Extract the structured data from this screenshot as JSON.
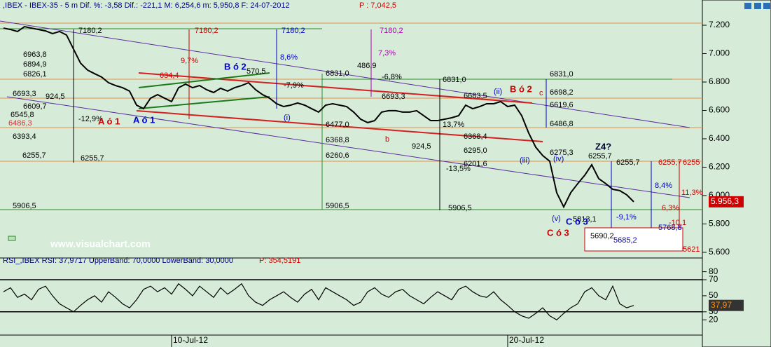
{
  "chart_data": [
    {
      "type": "line",
      "title": ",IBEX - IBEX-35 -  5 m Dif. %: -3,58 Dif.: -221,1 M: 6,254,6 m: 5,950,8 F: 24-07-2012",
      "price_label": "P : 7,042,5",
      "last_value_label": "5.956,3",
      "watermark": "www.visualchart.com",
      "color": "#000000",
      "categories": [
        null,
        null,
        null,
        null,
        null,
        null,
        null,
        null,
        null,
        null,
        null,
        null,
        null,
        null,
        null,
        null,
        null,
        null,
        null,
        null,
        null,
        null,
        null,
        null,
        "10-Jul-12",
        null,
        null,
        null,
        null,
        null,
        null,
        null,
        null,
        null,
        null,
        null,
        null,
        null,
        null,
        null,
        null,
        null,
        null,
        null,
        null,
        null,
        null,
        null,
        null,
        null,
        null,
        null,
        null,
        null,
        null,
        null,
        null,
        null,
        null,
        null,
        null,
        null,
        null,
        null,
        null,
        null,
        null,
        null,
        null,
        null,
        null,
        null,
        "20-Jul-12",
        null,
        null,
        null,
        null,
        null,
        null,
        null,
        null,
        null,
        null,
        null,
        null,
        null,
        null,
        null,
        null,
        null,
        null
      ],
      "values": [
        7180,
        7170,
        7156,
        7190,
        7180,
        7170,
        7160,
        7141,
        7156,
        7131,
        7032,
        6933,
        6884,
        6859,
        6835,
        6795,
        6775,
        6760,
        6736,
        6637,
        6612,
        6686,
        6711,
        6686,
        6662,
        6760,
        6785,
        6760,
        6775,
        6746,
        6726,
        6756,
        6736,
        6760,
        6775,
        6795,
        6746,
        6711,
        6686,
        6647,
        6627,
        6637,
        6652,
        6637,
        6612,
        6588,
        6637,
        6647,
        6637,
        6627,
        6588,
        6538,
        6514,
        6528,
        6588,
        6598,
        6598,
        6588,
        6588,
        6598,
        6563,
        6528,
        6528,
        6538,
        6548,
        6563,
        6637,
        6612,
        6627,
        6647,
        6647,
        6662,
        6627,
        6637,
        6563,
        6440,
        6341,
        6282,
        6242,
        6020,
        5920,
        6020,
        6084,
        6143,
        6217,
        6119,
        6084,
        6044,
        6035,
        6005,
        5956
      ],
      "ylim": [
        5575,
        7368
      ],
      "yticks": [
        {
          "value": 7200,
          "label": "7.200"
        },
        {
          "value": 7000,
          "label": "7.000"
        },
        {
          "value": 6800,
          "label": "6.800"
        },
        {
          "value": 6600,
          "label": "6.600"
        },
        {
          "value": 6400,
          "label": "6.400"
        },
        {
          "value": 6200,
          "label": "6.200"
        },
        {
          "value": 6000,
          "label": "6.000"
        },
        {
          "value": 5800,
          "label": "5.800"
        },
        {
          "value": 5600,
          "label": "5.600"
        }
      ],
      "annotations": [
        "7180,2",
        "7180,2",
        "7180,2",
        "7180,2",
        "6963,8",
        "6894,9",
        "6826,1",
        "6693,3",
        "924,5",
        "6609,7",
        "6545,8",
        "6486,3",
        "6393,4",
        "6255,7",
        "6255,7",
        "5906,5",
        "9,7%",
        "634,4",
        "B ó 2",
        "570,5",
        "-7,9%",
        "8,6%",
        "7,3%",
        "486,9",
        "-6,8%",
        "6831,0",
        "6831,0",
        "6693,3",
        "6683,5",
        "(ii)",
        "B ó 2",
        "c",
        "6831,0",
        "6698,2",
        "6619,6",
        "6486,8",
        "-12,9%",
        "A ó 1",
        "A ó 1",
        "(i)",
        "6477,0",
        "6368,8",
        "6260,6",
        "5906,5",
        "13,7%",
        "6368,4",
        "b",
        "924,5",
        "6295,0",
        "6201,6",
        "-13,5%",
        "5906,5",
        "6275,3",
        "(iii)",
        "(iv)",
        "Z4?",
        "6255,7",
        "6255,7",
        "6255,7",
        "6255",
        "8,4%",
        "11,3%",
        "6,3%",
        "(v)",
        "5813,1",
        "-9,1%",
        "C ó 3",
        "-10,1",
        "5768,8",
        "C ó 3",
        "5690,2",
        "5685,2",
        "5621"
      ]
    },
    {
      "type": "line",
      "title": "RSI_,IBEX RSI: 37,9717 UpperBand: 70,0000 LowerBand: 30,0000",
      "price_label": "P: 354,5191",
      "last_value_label": "37,97",
      "color": "#000000",
      "values": [
        55,
        60,
        48,
        52,
        45,
        58,
        62,
        50,
        40,
        35,
        30,
        38,
        45,
        50,
        42,
        55,
        48,
        40,
        35,
        45,
        58,
        62,
        55,
        60,
        52,
        65,
        58,
        50,
        62,
        55,
        48,
        60,
        52,
        58,
        65,
        50,
        42,
        38,
        45,
        50,
        55,
        48,
        42,
        52,
        58,
        45,
        60,
        55,
        50,
        45,
        38,
        42,
        55,
        60,
        52,
        48,
        55,
        58,
        50,
        45,
        40,
        48,
        55,
        50,
        45,
        58,
        62,
        55,
        50,
        48,
        55,
        45,
        38,
        30,
        25,
        22,
        28,
        35,
        25,
        20,
        28,
        35,
        40,
        55,
        60,
        50,
        45,
        62,
        40,
        35,
        37.97
      ],
      "bands": [
        70,
        30
      ],
      "ylim": [
        1,
        91
      ],
      "yticks": [
        80,
        70,
        50,
        30,
        20
      ]
    }
  ]
}
